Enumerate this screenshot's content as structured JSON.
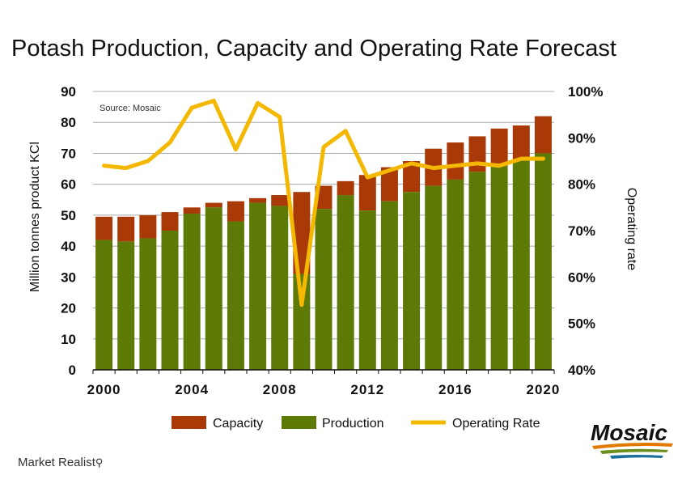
{
  "title": "Potash Production, Capacity and Operating Rate Forecast",
  "footer_brand": "Market Realist",
  "logo_text": "Mosaic",
  "colors": {
    "capacity": "#a93a08",
    "production": "#5e7a06",
    "operating_rate": "#f5b800",
    "gridline": "#a8a8a8"
  },
  "chart_data": {
    "type": "bar",
    "annotation": "Source: Mosaic",
    "ylabel": "Million tonnes product KCl",
    "y2label": "Operating rate",
    "ylim": [
      0,
      90
    ],
    "y2lim": [
      40,
      100
    ],
    "yticks": [
      "0",
      "10",
      "20",
      "30",
      "40",
      "50",
      "60",
      "70",
      "80",
      "90"
    ],
    "y2ticks": [
      "40%",
      "50%",
      "60%",
      "70%",
      "80%",
      "90%",
      "100%"
    ],
    "xticks": [
      "2000",
      "2004",
      "2008",
      "2012",
      "2016",
      "2020"
    ],
    "grid": true,
    "legend_position": "bottom",
    "categories": [
      "2000",
      "2001",
      "2002",
      "2003",
      "2004",
      "2005",
      "2006",
      "2007",
      "2008",
      "2009",
      "2010",
      "2011",
      "2012",
      "2013",
      "2014",
      "2015",
      "2016",
      "2017",
      "2018",
      "2019",
      "2020"
    ],
    "series": [
      {
        "name": "Capacity",
        "kind": "bar-stack-total",
        "values": [
          49.5,
          49.5,
          50,
          51,
          52.5,
          54,
          54.5,
          55.5,
          56.5,
          57.5,
          59.5,
          61,
          63,
          65.5,
          67.5,
          71.5,
          73.5,
          75.5,
          78,
          79,
          82
        ]
      },
      {
        "name": "Production",
        "kind": "bar",
        "values": [
          42,
          41.5,
          42.5,
          45,
          50.5,
          52.5,
          48,
          54,
          53,
          31,
          52,
          56.5,
          51.5,
          54.5,
          57.5,
          59.5,
          61.5,
          64,
          66,
          68,
          70
        ]
      },
      {
        "name": "Operating Rate",
        "kind": "line",
        "axis": "right",
        "values": [
          84,
          83.5,
          85,
          89,
          96.5,
          98,
          87.5,
          97.5,
          94.5,
          54,
          88,
          91.5,
          81.5,
          83,
          84.5,
          83.5,
          84,
          84.5,
          84,
          85.5,
          85.5
        ]
      }
    ]
  }
}
